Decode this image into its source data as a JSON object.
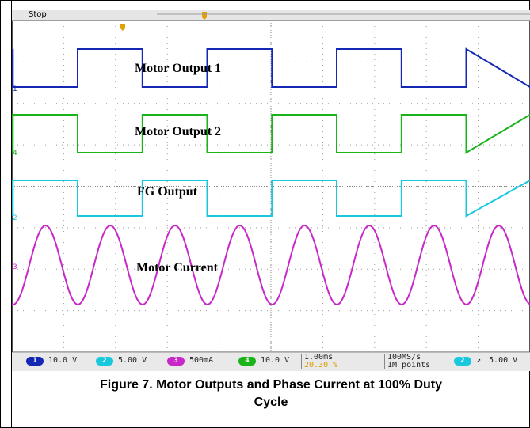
{
  "status": {
    "mode": "Stop"
  },
  "traces": [
    {
      "label": "Motor Output 1",
      "color": "#1428b4",
      "marker": "1"
    },
    {
      "label": "Motor Output 2",
      "color": "#1ab41a",
      "marker": "4"
    },
    {
      "label": "FG Output",
      "color": "#19c8dc",
      "marker": "2"
    },
    {
      "label": "Motor Current",
      "color": "#c828c8",
      "marker": "3"
    }
  ],
  "channels": [
    {
      "num": "1",
      "value": "10.0 V",
      "color": "#1428b4"
    },
    {
      "num": "2",
      "value": "5.00 V",
      "color": "#19c8dc"
    },
    {
      "num": "3",
      "value": "500mA",
      "color": "#c828c8"
    },
    {
      "num": "4",
      "value": "10.0 V",
      "color": "#1ab41a"
    }
  ],
  "timebase": {
    "scale": "1.00ms",
    "position": "20.30 %"
  },
  "acquisition": {
    "rate": "100MS/s",
    "points": "1M points"
  },
  "trigger": {
    "channel": "2",
    "slope": "↗",
    "level": "5.00 V"
  },
  "chart_data": {
    "type": "line",
    "grid": true,
    "divisions": {
      "x": 10,
      "y": 8
    },
    "duty_cycle_percent": 100,
    "series": [
      {
        "name": "Motor Output 1",
        "waveform": "square",
        "period_ms": 2.5
      },
      {
        "name": "Motor Output 2",
        "waveform": "square",
        "period_ms": 2.5
      },
      {
        "name": "FG Output",
        "waveform": "square",
        "period_ms": 2.5
      },
      {
        "name": "Motor Current",
        "waveform": "sine",
        "period_ms": 1.25
      }
    ]
  },
  "caption": {
    "line1": "Figure 7. Motor Outputs and Phase Current at 100% Duty",
    "line2": "Cycle"
  }
}
